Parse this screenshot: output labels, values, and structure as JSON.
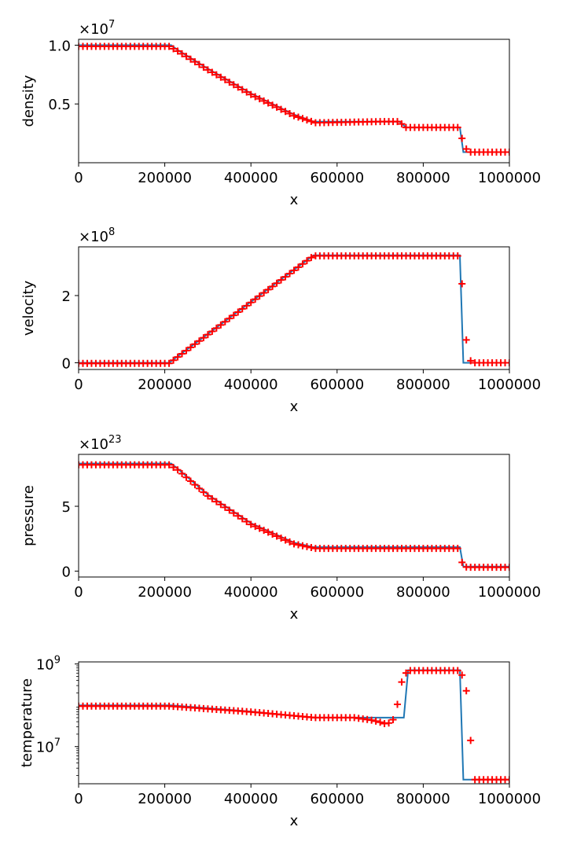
{
  "chart_data": [
    {
      "type": "line",
      "ylabel": "density",
      "xlabel": "x",
      "offset_text": "×10",
      "offset_exp": "7",
      "scale": "linear",
      "xlim": [
        0,
        1000000
      ],
      "ylim": [
        0.0,
        1.05
      ],
      "x_ticks": [
        0,
        200000,
        400000,
        600000,
        800000,
        1000000
      ],
      "y_ticks": [
        0.5,
        1.0
      ],
      "y_tick_labels": [
        "0.5",
        "1.0"
      ],
      "series": [
        {
          "kind": "line",
          "x": [
            0,
            215000,
            230000,
            300000,
            400000,
            500000,
            545000,
            745000,
            760000,
            885000,
            893000,
            1000000
          ],
          "y": [
            1.0,
            1.0,
            0.96,
            0.8,
            0.59,
            0.41,
            0.35,
            0.35,
            0.3,
            0.3,
            0.09,
            0.09
          ],
          "color": "#1f77b4"
        },
        {
          "kind": "scatter",
          "x": [
            0,
            210000,
            230000,
            300000,
            400000,
            500000,
            550000,
            700000,
            740000,
            750000,
            760000,
            880000,
            893000,
            903000,
            1000000
          ],
          "y": [
            0.99,
            0.99,
            0.95,
            0.79,
            0.58,
            0.4,
            0.34,
            0.35,
            0.35,
            0.33,
            0.3,
            0.3,
            0.18,
            0.09,
            0.09
          ],
          "step": 10000,
          "color": "#ff0000"
        }
      ]
    },
    {
      "type": "line",
      "ylabel": "velocity",
      "xlabel": "x",
      "offset_text": "×10",
      "offset_exp": "8",
      "scale": "linear",
      "xlim": [
        0,
        1000000
      ],
      "ylim": [
        -0.2,
        3.45
      ],
      "x_ticks": [
        0,
        200000,
        400000,
        600000,
        800000,
        1000000
      ],
      "y_ticks": [
        0,
        2
      ],
      "y_tick_labels": [
        "0",
        "2"
      ],
      "series": [
        {
          "kind": "line",
          "x": [
            0,
            210000,
            545000,
            885000,
            893000,
            1000000
          ],
          "y": [
            0,
            0,
            3.2,
            3.2,
            0,
            0
          ],
          "color": "#1f77b4"
        },
        {
          "kind": "scatter",
          "x": [
            0,
            210000,
            545000,
            880000,
            887000,
            893000,
            903000,
            913000,
            1000000
          ],
          "y": [
            -0.02,
            -0.02,
            3.18,
            3.18,
            2.9,
            1.8,
            0.2,
            0.0,
            0.0
          ],
          "step": 10000,
          "color": "#ff0000"
        }
      ]
    },
    {
      "type": "line",
      "ylabel": "pressure",
      "xlabel": "x",
      "offset_text": "×10",
      "offset_exp": "23",
      "scale": "linear",
      "xlim": [
        0,
        1000000
      ],
      "ylim": [
        -0.45,
        9.0
      ],
      "x_ticks": [
        0,
        200000,
        400000,
        600000,
        800000,
        1000000
      ],
      "y_ticks": [
        0,
        5
      ],
      "y_tick_labels": [
        "0",
        "5"
      ],
      "series": [
        {
          "kind": "line",
          "x": [
            0,
            215000,
            230000,
            300000,
            400000,
            500000,
            545000,
            885000,
            893000,
            1000000
          ],
          "y": [
            8.3,
            8.3,
            7.9,
            5.9,
            3.7,
            2.2,
            1.85,
            1.85,
            0.35,
            0.35
          ],
          "color": "#1f77b4"
        },
        {
          "kind": "scatter",
          "x": [
            0,
            210000,
            230000,
            300000,
            400000,
            500000,
            550000,
            880000,
            887000,
            893000,
            903000,
            1000000
          ],
          "y": [
            8.2,
            8.2,
            7.8,
            5.8,
            3.6,
            2.1,
            1.75,
            1.75,
            1.0,
            0.35,
            0.3,
            0.3
          ],
          "step": 10000,
          "color": "#ff0000"
        }
      ]
    },
    {
      "type": "line",
      "ylabel": "temperature",
      "xlabel": "x",
      "scale": "log",
      "xlim": [
        0,
        1000000
      ],
      "ylim_log10": [
        6.1,
        9.05
      ],
      "x_ticks": [
        0,
        200000,
        400000,
        600000,
        800000,
        1000000
      ],
      "y_ticks_log10": [
        7,
        9
      ],
      "y_tick_base": "10",
      "y_tick_exps": [
        "7",
        "9"
      ],
      "series": [
        {
          "kind": "line",
          "x": [
            0,
            215000,
            400000,
            545000,
            755000,
            765000,
            885000,
            893000,
            1000000
          ],
          "y_log10": [
            8.0,
            8.0,
            7.85,
            7.7,
            7.7,
            8.85,
            8.85,
            6.2,
            6.2
          ],
          "color": "#1f77b4"
        },
        {
          "kind": "scatter",
          "x": [
            0,
            210000,
            400000,
            550000,
            640000,
            680000,
            700000,
            715000,
            725000,
            735000,
            742000,
            748000,
            755000,
            765000,
            880000,
            893000,
            905000,
            915000,
            1000000
          ],
          "y_log10": [
            7.98,
            7.98,
            7.84,
            7.7,
            7.7,
            7.64,
            7.59,
            7.54,
            7.6,
            7.7,
            8.15,
            8.5,
            8.72,
            8.84,
            8.84,
            8.7,
            8.1,
            6.2,
            6.2
          ],
          "step": 10000,
          "color": "#ff0000"
        }
      ]
    }
  ]
}
